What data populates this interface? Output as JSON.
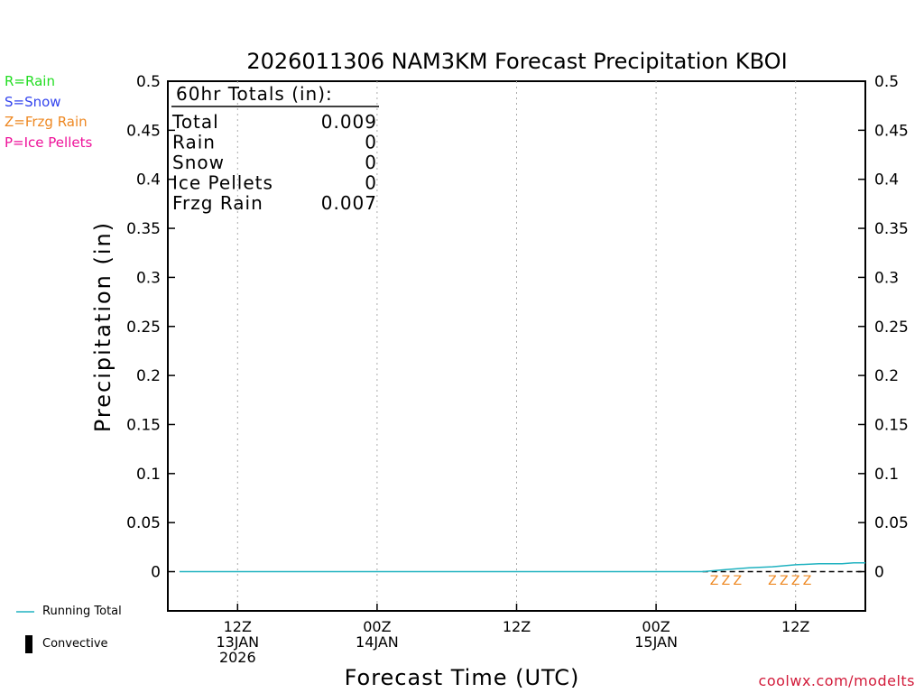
{
  "chart_data": {
    "type": "line",
    "title": "2026011306 NAM3KM Forecast Precipitation KBOI",
    "xlabel": "Forecast Time (UTC)",
    "ylabel": "Precipitation (in)",
    "ylim": [
      -0.04,
      0.5
    ],
    "yticks": [
      0,
      0.05,
      0.1,
      0.15,
      0.2,
      0.25,
      0.3,
      0.35,
      0.4,
      0.45,
      0.5
    ],
    "ytick_labels": [
      "0",
      "0.05",
      "0.1",
      "0.15",
      "0.2",
      "0.25",
      "0.3",
      "0.35",
      "0.4",
      "0.45",
      "0.5"
    ],
    "xlim_hours": [
      0,
      60
    ],
    "x_unit": "forecast hours from 2026-01-13 06Z",
    "xticks": [
      {
        "hour": 6,
        "lines": [
          "12Z",
          "13JAN",
          "2026"
        ]
      },
      {
        "hour": 18,
        "lines": [
          "00Z",
          "14JAN"
        ]
      },
      {
        "hour": 30,
        "lines": [
          "12Z"
        ]
      },
      {
        "hour": 42,
        "lines": [
          "00Z",
          "15JAN"
        ]
      },
      {
        "hour": 54,
        "lines": [
          "12Z"
        ]
      }
    ],
    "series": [
      {
        "name": "Running Total",
        "color": "#20b2c0",
        "x": [
          1,
          6,
          12,
          18,
          24,
          30,
          36,
          42,
          46,
          48,
          50,
          52,
          54,
          56,
          58,
          59,
          60
        ],
        "values": [
          0,
          0,
          0,
          0,
          0,
          0,
          0,
          0,
          0,
          0.002,
          0.004,
          0.005,
          0.007,
          0.008,
          0.008,
          0.009,
          0.009
        ]
      }
    ],
    "ptype_markers": {
      "color": "#ee8822",
      "symbol": "Z",
      "hours": [
        47,
        48,
        49,
        52,
        53,
        54,
        55
      ]
    },
    "totals_box": {
      "header": "60hr Totals (in):",
      "rows": [
        {
          "label": "Total",
          "value": "0.009"
        },
        {
          "label": "Rain",
          "value": "0"
        },
        {
          "label": "Snow",
          "value": "0"
        },
        {
          "label": "Ice Pellets",
          "value": "0"
        },
        {
          "label": "Frzg Rain",
          "value": "0.007"
        }
      ]
    }
  },
  "ptype_legend": [
    {
      "text": "R=Rain",
      "color": "#22dd22"
    },
    {
      "text": "S=Snow",
      "color": "#3344ee"
    },
    {
      "text": "Z=Frzg Rain",
      "color": "#ee8822"
    },
    {
      "text": "P=Ice Pellets",
      "color": "#ee1199"
    }
  ],
  "key": {
    "running_total": "Running Total",
    "convective": "Convective"
  },
  "watermark": "coolwx.com/modelts"
}
